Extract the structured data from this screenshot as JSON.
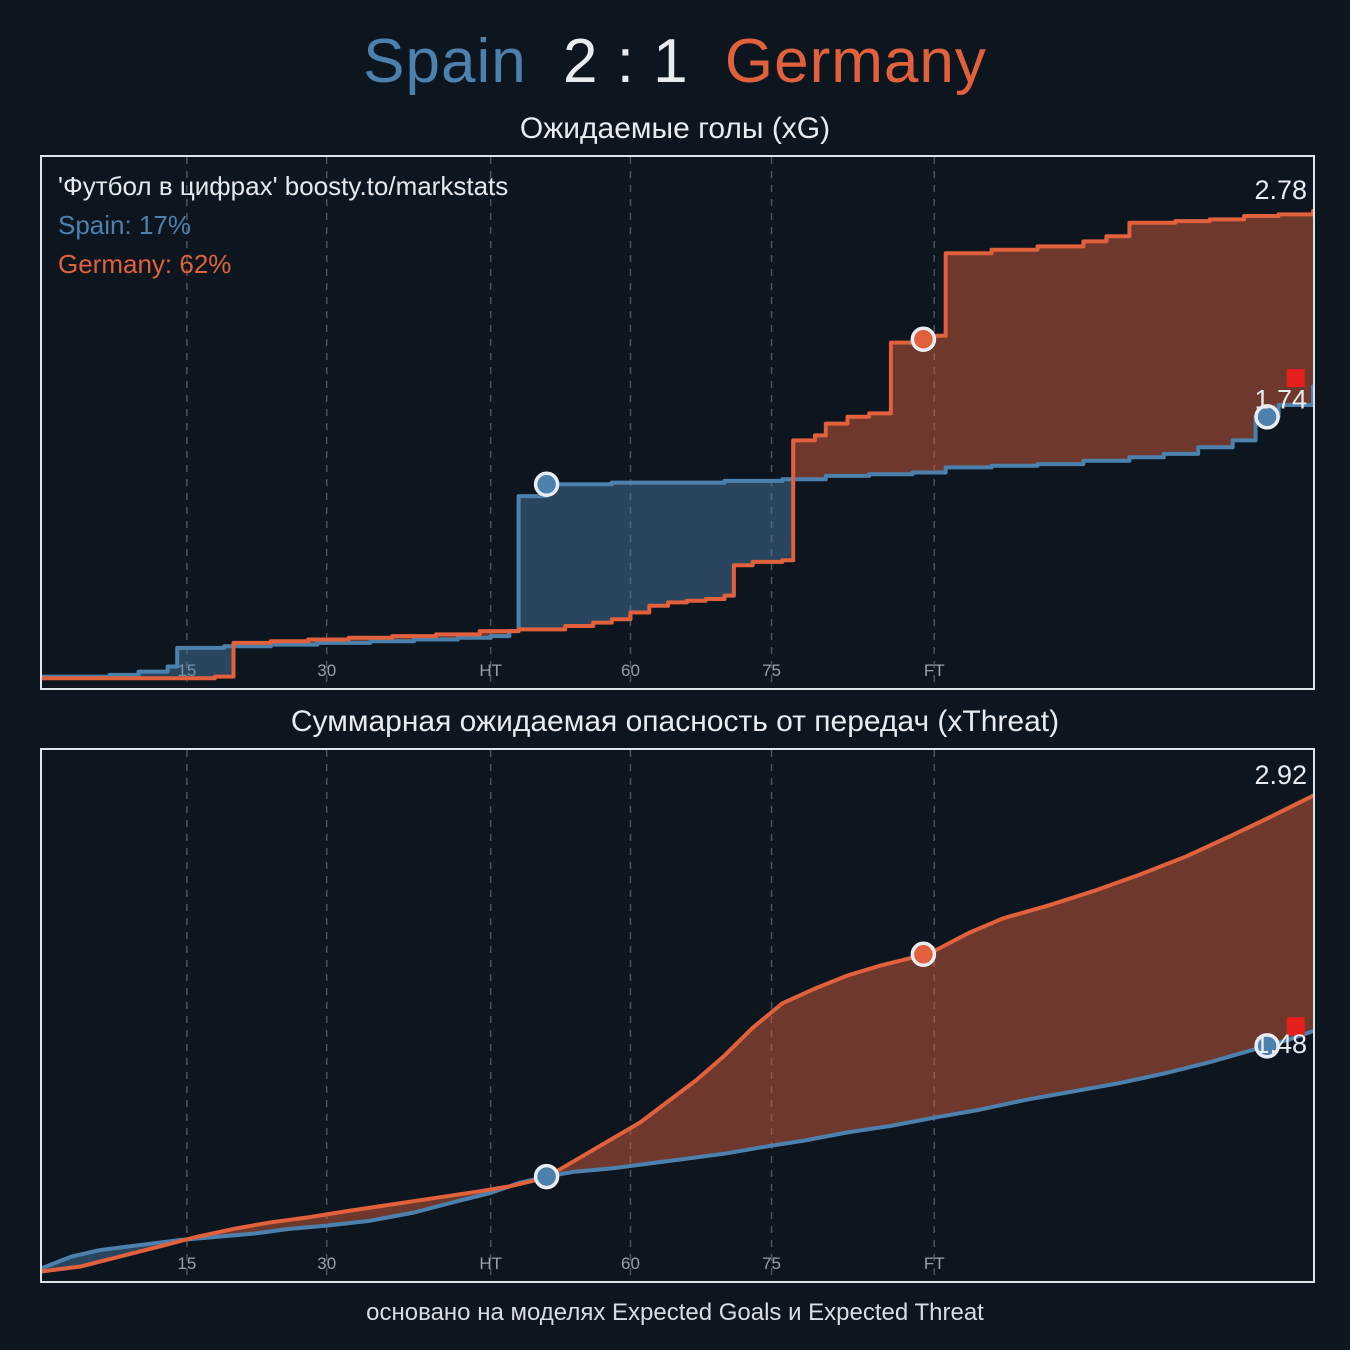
{
  "header": {
    "home_team": "Spain",
    "score": "2 : 1",
    "away_team": "Germany"
  },
  "watermark": {
    "credit": "'Футбол в цифрах' boosty.to/markstats",
    "home_prob_label": "Spain: 17%",
    "away_prob_label": "Germany: 62%"
  },
  "footer": {
    "note": "основано на моделях Expected Goals и Expected Threat"
  },
  "colors": {
    "home": "#4d81ad",
    "away": "#e0613c",
    "background": "#0d151f",
    "panel_border": "#dfe4e8",
    "grid": "#49545e",
    "tick_text": "#97a1a9",
    "text": "#e9ecef",
    "red_card": "#e6201c"
  },
  "axis": {
    "x_anchors": [
      [
        0,
        0
      ],
      [
        15,
        0.114
      ],
      [
        30,
        0.224
      ],
      [
        45,
        0.353
      ],
      [
        60,
        0.463
      ],
      [
        75,
        0.574
      ],
      [
        90,
        0.702
      ],
      [
        123,
        1.0
      ]
    ],
    "ticks": [
      {
        "minute": 15,
        "label": "15"
      },
      {
        "minute": 30,
        "label": "30"
      },
      {
        "minute": 45,
        "label": "HT"
      },
      {
        "minute": 60,
        "label": "60"
      },
      {
        "minute": 75,
        "label": "75"
      },
      {
        "minute": 90,
        "label": "FT"
      }
    ]
  },
  "chart_data": [
    {
      "type": "area",
      "title": "Ожидаемые голы (xG)",
      "interpolation": "step",
      "ylim": [
        0,
        3.1
      ],
      "grid": "vertical-dashed",
      "legend": "none",
      "series": [
        {
          "name": "Spain",
          "color_key": "home",
          "final_value": 1.74,
          "points": [
            [
              0,
              0.02
            ],
            [
              7,
              0.03
            ],
            [
              10,
              0.05
            ],
            [
              13,
              0.08
            ],
            [
              14,
              0.19
            ],
            [
              19,
              0.2
            ],
            [
              24,
              0.21
            ],
            [
              29,
              0.22
            ],
            [
              34,
              0.23
            ],
            [
              38,
              0.24
            ],
            [
              42,
              0.25
            ],
            [
              45,
              0.26
            ],
            [
              47,
              0.29
            ],
            [
              48,
              1.09
            ],
            [
              51,
              1.16
            ],
            [
              58,
              1.17
            ],
            [
              64,
              1.17
            ],
            [
              70,
              1.18
            ],
            [
              76,
              1.19
            ],
            [
              80,
              1.21
            ],
            [
              84,
              1.22
            ],
            [
              88,
              1.23
            ],
            [
              91,
              1.26
            ],
            [
              95,
              1.27
            ],
            [
              99,
              1.28
            ],
            [
              103,
              1.3
            ],
            [
              107,
              1.32
            ],
            [
              110,
              1.34
            ],
            [
              113,
              1.38
            ],
            [
              116,
              1.42
            ],
            [
              118,
              1.56
            ],
            [
              120,
              1.63
            ],
            [
              123,
              1.74
            ]
          ]
        },
        {
          "name": "Germany",
          "color_key": "away",
          "final_value": 2.78,
          "points": [
            [
              0,
              0.01
            ],
            [
              18,
              0.02
            ],
            [
              20,
              0.22
            ],
            [
              24,
              0.23
            ],
            [
              28,
              0.24
            ],
            [
              32,
              0.25
            ],
            [
              36,
              0.26
            ],
            [
              40,
              0.27
            ],
            [
              44,
              0.29
            ],
            [
              48,
              0.3
            ],
            [
              53,
              0.32
            ],
            [
              56,
              0.34
            ],
            [
              58,
              0.36
            ],
            [
              60,
              0.4
            ],
            [
              62,
              0.44
            ],
            [
              64,
              0.46
            ],
            [
              66,
              0.47
            ],
            [
              68,
              0.48
            ],
            [
              70,
              0.5
            ],
            [
              71,
              0.68
            ],
            [
              73,
              0.7
            ],
            [
              76,
              0.71
            ],
            [
              77,
              1.42
            ],
            [
              79,
              1.45
            ],
            [
              80,
              1.52
            ],
            [
              82,
              1.56
            ],
            [
              84,
              1.58
            ],
            [
              86,
              2.0
            ],
            [
              88,
              2.02
            ],
            [
              90,
              2.04
            ],
            [
              91,
              2.53
            ],
            [
              95,
              2.55
            ],
            [
              99,
              2.57
            ],
            [
              103,
              2.6
            ],
            [
              105,
              2.63
            ],
            [
              107,
              2.71
            ],
            [
              111,
              2.72
            ],
            [
              114,
              2.73
            ],
            [
              117,
              2.75
            ],
            [
              120,
              2.76
            ],
            [
              123,
              2.78
            ]
          ]
        }
      ],
      "markers": [
        {
          "type": "goal",
          "series": 0,
          "minute": 51
        },
        {
          "type": "goal",
          "series": 1,
          "minute": 89
        },
        {
          "type": "goal",
          "series": 0,
          "minute": 119
        },
        {
          "type": "red-card",
          "minute": 121.5,
          "value": 1.79
        }
      ]
    },
    {
      "type": "area",
      "title": "Суммарная ожидаемая опасность от передач (xThreat)",
      "interpolation": "linear",
      "ylim": [
        0,
        3.2
      ],
      "grid": "vertical-dashed",
      "legend": "none",
      "series": [
        {
          "name": "Spain",
          "color_key": "home",
          "final_value": 1.48,
          "points": [
            [
              0,
              0.03
            ],
            [
              3,
              0.1
            ],
            [
              6,
              0.14
            ],
            [
              10,
              0.17
            ],
            [
              14,
              0.2
            ],
            [
              18,
              0.22
            ],
            [
              22,
              0.24
            ],
            [
              26,
              0.27
            ],
            [
              30,
              0.29
            ],
            [
              34,
              0.32
            ],
            [
              38,
              0.37
            ],
            [
              42,
              0.44
            ],
            [
              45,
              0.49
            ],
            [
              48,
              0.55
            ],
            [
              51,
              0.59
            ],
            [
              54,
              0.62
            ],
            [
              58,
              0.64
            ],
            [
              62,
              0.67
            ],
            [
              66,
              0.7
            ],
            [
              70,
              0.73
            ],
            [
              74,
              0.77
            ],
            [
              78,
              0.81
            ],
            [
              82,
              0.86
            ],
            [
              86,
              0.9
            ],
            [
              90,
              0.95
            ],
            [
              94,
              1.0
            ],
            [
              98,
              1.06
            ],
            [
              102,
              1.11
            ],
            [
              106,
              1.16
            ],
            [
              110,
              1.22
            ],
            [
              114,
              1.29
            ],
            [
              118,
              1.37
            ],
            [
              121,
              1.43
            ],
            [
              123,
              1.48
            ]
          ]
        },
        {
          "name": "Germany",
          "color_key": "away",
          "final_value": 2.92,
          "points": [
            [
              0,
              0.01
            ],
            [
              4,
              0.04
            ],
            [
              8,
              0.1
            ],
            [
              12,
              0.16
            ],
            [
              16,
              0.22
            ],
            [
              20,
              0.27
            ],
            [
              24,
              0.31
            ],
            [
              28,
              0.34
            ],
            [
              32,
              0.38
            ],
            [
              36,
              0.42
            ],
            [
              40,
              0.46
            ],
            [
              44,
              0.5
            ],
            [
              47,
              0.53
            ],
            [
              50,
              0.57
            ],
            [
              52,
              0.62
            ],
            [
              55,
              0.72
            ],
            [
              58,
              0.82
            ],
            [
              61,
              0.92
            ],
            [
              64,
              1.05
            ],
            [
              67,
              1.18
            ],
            [
              70,
              1.33
            ],
            [
              73,
              1.5
            ],
            [
              76,
              1.65
            ],
            [
              79,
              1.74
            ],
            [
              82,
              1.82
            ],
            [
              85,
              1.88
            ],
            [
              88,
              1.93
            ],
            [
              90,
              1.97
            ],
            [
              93,
              2.08
            ],
            [
              96,
              2.17
            ],
            [
              100,
              2.25
            ],
            [
              104,
              2.34
            ],
            [
              108,
              2.44
            ],
            [
              112,
              2.55
            ],
            [
              116,
              2.68
            ],
            [
              119,
              2.78
            ],
            [
              121,
              2.85
            ],
            [
              123,
              2.92
            ]
          ]
        }
      ],
      "markers": [
        {
          "type": "goal",
          "series": 0,
          "minute": 51
        },
        {
          "type": "goal",
          "series": 1,
          "minute": 89
        },
        {
          "type": "goal",
          "series": 0,
          "minute": 119
        },
        {
          "type": "red-card",
          "minute": 121.5,
          "value": 1.51
        }
      ]
    }
  ]
}
